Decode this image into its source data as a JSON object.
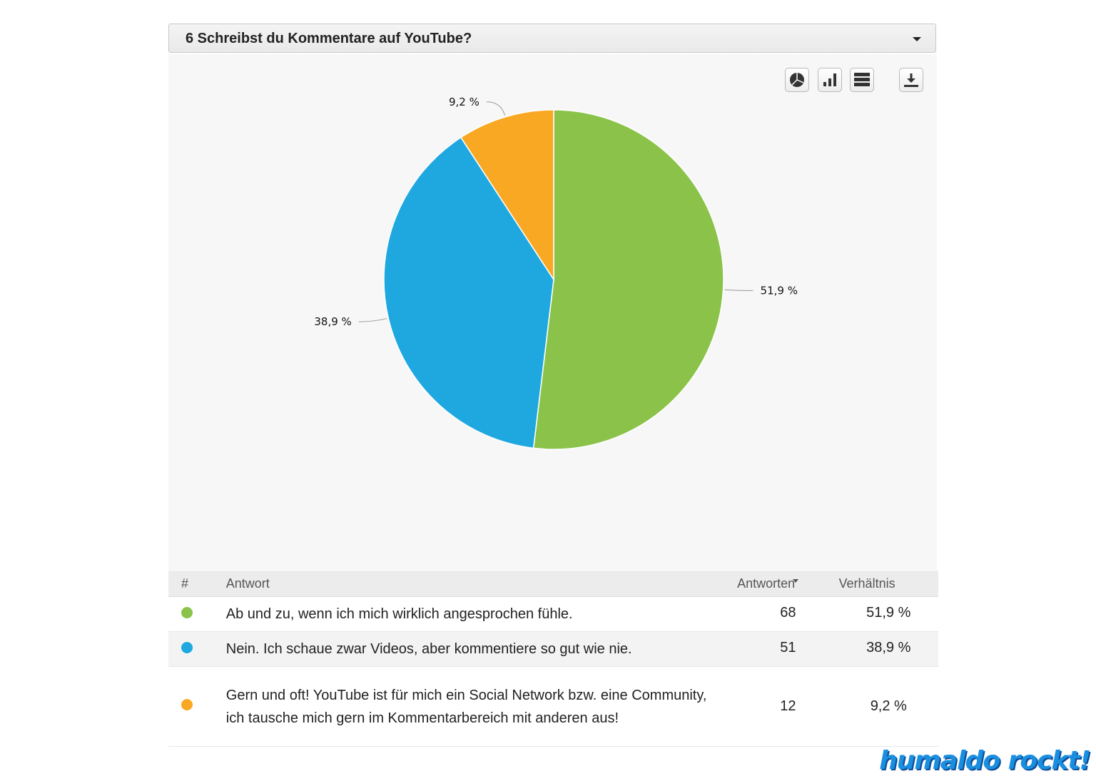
{
  "panel": {
    "title": "6 Schreibst du Kommentare auf YouTube?"
  },
  "toolbar": {
    "buttons": [
      "pie-chart-icon",
      "bar-chart-icon",
      "table-view-icon",
      "download-icon"
    ]
  },
  "chart_data": {
    "type": "pie",
    "slices": [
      {
        "label": "Ab und zu, wenn ich mich wirklich angesprochen fühle.",
        "value": 51.9,
        "count": 68,
        "display": "51,9 %",
        "color": "#8bc34a"
      },
      {
        "label": "Nein. Ich schaue zwar Videos, aber kommentiere so gut wie nie.",
        "value": 38.9,
        "count": 51,
        "display": "38,9 %",
        "color": "#1fa8df"
      },
      {
        "label": "Gern und oft! YouTube ist für mich ein Social Network bzw. eine Community, ich tausche mich gern im Kommentarbereich mit anderen aus!",
        "value": 9.2,
        "count": 12,
        "display": "9,2 %",
        "color": "#f9a823"
      }
    ]
  },
  "table": {
    "headers": {
      "num": "#",
      "answer": "Antwort",
      "count": "Antworten",
      "ratio": "Verhältnis"
    },
    "rows": [
      {
        "answer": "Ab und zu, wenn ich mich wirklich angesprochen fühle.",
        "count": "68",
        "ratio": "51,9 %",
        "color": "#8bc34a"
      },
      {
        "answer": "Nein. Ich schaue zwar Videos, aber kommentiere so gut wie nie.",
        "count": "51",
        "ratio": "38,9 %",
        "color": "#1fa8df"
      },
      {
        "answer": "Gern und oft! YouTube ist für mich ein Social Network bzw. eine Community, ich tausche mich gern im Kommentarbereich mit anderen aus!",
        "count": "12",
        "ratio": "9,2 %",
        "color": "#f9a823"
      }
    ]
  },
  "watermark": "humaldo rockt!"
}
